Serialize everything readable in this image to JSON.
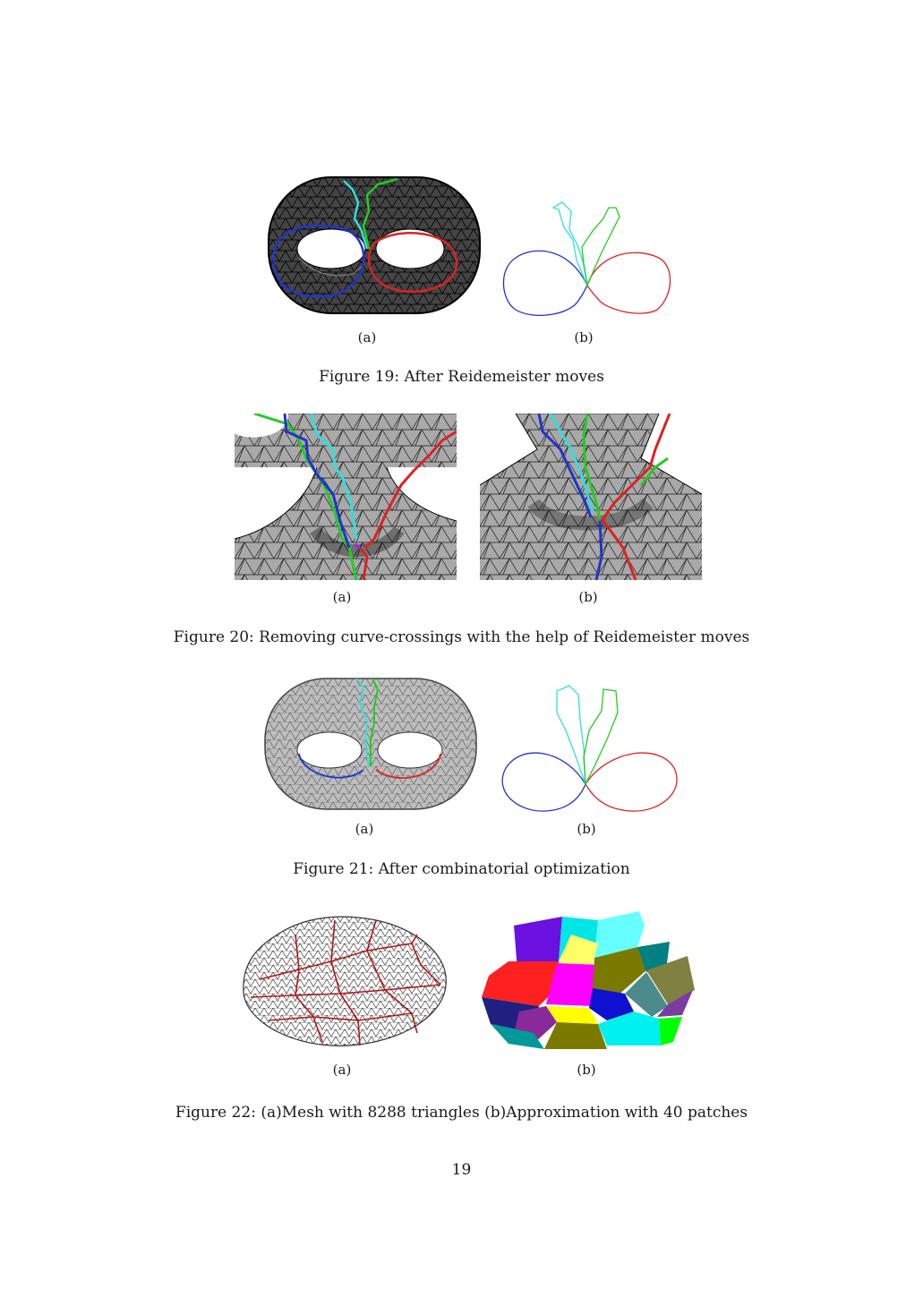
{
  "page_number": "19",
  "figures": [
    {
      "id": "fig19",
      "caption": "Figure 19: After Reidemeister moves",
      "sub_a": "(a)",
      "sub_b": "(b)"
    },
    {
      "id": "fig20",
      "caption": "Figure 20: Removing curve-crossings with the help of Reidemeister moves",
      "sub_a": "(a)",
      "sub_b": "(b)"
    },
    {
      "id": "fig21",
      "caption": "Figure 21: After combinatorial optimization",
      "sub_a": "(a)",
      "sub_b": "(b)"
    },
    {
      "id": "fig22",
      "caption": "Figure 22: (a)Mesh with 8288 triangles (b)Approximation with 40 patches",
      "sub_a": "(a)",
      "sub_b": "(b)"
    }
  ],
  "colors": {
    "curve_blue": "#2233cc",
    "curve_red": "#dd2222",
    "curve_green": "#22cc22",
    "curve_cyan": "#33dddd",
    "mesh_gray": "#a8a8a8",
    "mesh_line": "#111111"
  }
}
